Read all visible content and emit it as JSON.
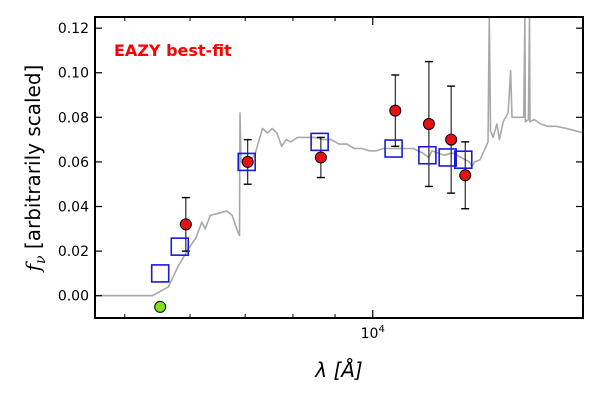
{
  "chart_data": {
    "type": "scatter",
    "annotation": "EAZY best-fit",
    "xlabel": "λ [Å]",
    "ylabel": "f_ν [arbitrarily scaled]",
    "x_scale": "log",
    "xlim": [
      4600,
      18000
    ],
    "ylim": [
      -0.01,
      0.125
    ],
    "y_ticks": [
      0.0,
      0.02,
      0.04,
      0.06,
      0.08,
      0.1,
      0.12
    ],
    "y_tick_labels": [
      "0.00",
      "0.02",
      "0.04",
      "0.06",
      "0.08",
      "0.10",
      "0.12"
    ],
    "x_major_ticks": [
      10000
    ],
    "x_minor_ticks": [
      5000,
      6000,
      7000,
      8000,
      9000
    ],
    "grid": false,
    "colors": {
      "template": "#a8a8a8",
      "observed": "#e81010",
      "upper_limit": "#7fe21a",
      "model_box": "#1a1adc",
      "annotation": "#ff0000",
      "errorbar": "#000000"
    },
    "series": [
      {
        "kind": "template",
        "values": [
          {
            "x": 4600,
            "y": 0.0
          },
          {
            "x": 5400,
            "y": 0.0
          },
          {
            "x": 5650,
            "y": 0.004
          },
          {
            "x": 5800,
            "y": 0.013
          },
          {
            "x": 5950,
            "y": 0.02
          },
          {
            "x": 6100,
            "y": 0.026
          },
          {
            "x": 6200,
            "y": 0.033
          },
          {
            "x": 6260,
            "y": 0.03
          },
          {
            "x": 6350,
            "y": 0.036
          },
          {
            "x": 6500,
            "y": 0.037
          },
          {
            "x": 6650,
            "y": 0.038
          },
          {
            "x": 6750,
            "y": 0.036
          },
          {
            "x": 6850,
            "y": 0.029
          },
          {
            "x": 6890,
            "y": 0.027
          },
          {
            "x": 6900,
            "y": 0.082
          },
          {
            "x": 6920,
            "y": 0.06
          },
          {
            "x": 7050,
            "y": 0.058
          },
          {
            "x": 7200,
            "y": 0.064
          },
          {
            "x": 7280,
            "y": 0.07
          },
          {
            "x": 7350,
            "y": 0.075
          },
          {
            "x": 7450,
            "y": 0.073
          },
          {
            "x": 7550,
            "y": 0.075
          },
          {
            "x": 7650,
            "y": 0.073
          },
          {
            "x": 7750,
            "y": 0.067
          },
          {
            "x": 7850,
            "y": 0.07
          },
          {
            "x": 7950,
            "y": 0.069
          },
          {
            "x": 8100,
            "y": 0.071
          },
          {
            "x": 8300,
            "y": 0.071
          },
          {
            "x": 8500,
            "y": 0.071
          },
          {
            "x": 8700,
            "y": 0.07
          },
          {
            "x": 8900,
            "y": 0.07
          },
          {
            "x": 9100,
            "y": 0.068
          },
          {
            "x": 9300,
            "y": 0.068
          },
          {
            "x": 9500,
            "y": 0.066
          },
          {
            "x": 9700,
            "y": 0.066
          },
          {
            "x": 9900,
            "y": 0.065
          },
          {
            "x": 10100,
            "y": 0.065
          },
          {
            "x": 10300,
            "y": 0.066
          },
          {
            "x": 10600,
            "y": 0.066
          },
          {
            "x": 10900,
            "y": 0.066
          },
          {
            "x": 11200,
            "y": 0.066
          },
          {
            "x": 11500,
            "y": 0.064
          },
          {
            "x": 11700,
            "y": 0.062
          },
          {
            "x": 11800,
            "y": 0.065
          },
          {
            "x": 12000,
            "y": 0.064
          },
          {
            "x": 12200,
            "y": 0.063
          },
          {
            "x": 12500,
            "y": 0.064
          },
          {
            "x": 12800,
            "y": 0.062
          },
          {
            "x": 13100,
            "y": 0.06
          },
          {
            "x": 13200,
            "y": 0.058
          },
          {
            "x": 13300,
            "y": 0.06
          },
          {
            "x": 13500,
            "y": 0.061
          },
          {
            "x": 13800,
            "y": 0.069
          },
          {
            "x": 13850,
            "y": 0.125
          },
          {
            "x": 13900,
            "y": 0.074
          },
          {
            "x": 14000,
            "y": 0.071
          },
          {
            "x": 14150,
            "y": 0.077
          },
          {
            "x": 14250,
            "y": 0.07
          },
          {
            "x": 14400,
            "y": 0.078
          },
          {
            "x": 14600,
            "y": 0.082
          },
          {
            "x": 14700,
            "y": 0.101
          },
          {
            "x": 14760,
            "y": 0.08
          },
          {
            "x": 15000,
            "y": 0.08
          },
          {
            "x": 15250,
            "y": 0.08
          },
          {
            "x": 15300,
            "y": 0.125
          },
          {
            "x": 15320,
            "y": 0.078
          },
          {
            "x": 15450,
            "y": 0.079
          },
          {
            "x": 15500,
            "y": 0.125
          },
          {
            "x": 15520,
            "y": 0.078
          },
          {
            "x": 15700,
            "y": 0.079
          },
          {
            "x": 16000,
            "y": 0.077
          },
          {
            "x": 16300,
            "y": 0.076
          },
          {
            "x": 16700,
            "y": 0.076
          },
          {
            "x": 17200,
            "y": 0.075
          },
          {
            "x": 17600,
            "y": 0.074
          },
          {
            "x": 18000,
            "y": 0.073
          }
        ]
      },
      {
        "kind": "model_photometry",
        "values": [
          {
            "x": 5520,
            "y": 0.01
          },
          {
            "x": 5830,
            "y": 0.022
          },
          {
            "x": 7030,
            "y": 0.06
          },
          {
            "x": 8620,
            "y": 0.069
          },
          {
            "x": 10600,
            "y": 0.066
          },
          {
            "x": 11650,
            "y": 0.063
          },
          {
            "x": 12330,
            "y": 0.062
          },
          {
            "x": 12880,
            "y": 0.061
          }
        ]
      },
      {
        "kind": "observed",
        "values": [
          {
            "x": 5520,
            "y": -0.005,
            "err": 0.0,
            "upper_limit": true
          },
          {
            "x": 5930,
            "y": 0.032,
            "err": 0.012
          },
          {
            "x": 7050,
            "y": 0.06,
            "err": 0.01
          },
          {
            "x": 8650,
            "y": 0.062,
            "err": 0.009
          },
          {
            "x": 10650,
            "y": 0.083,
            "err": 0.016
          },
          {
            "x": 11700,
            "y": 0.077,
            "err": 0.028
          },
          {
            "x": 12450,
            "y": 0.07,
            "err": 0.024
          },
          {
            "x": 12950,
            "y": 0.054,
            "err": 0.015
          }
        ]
      }
    ]
  }
}
